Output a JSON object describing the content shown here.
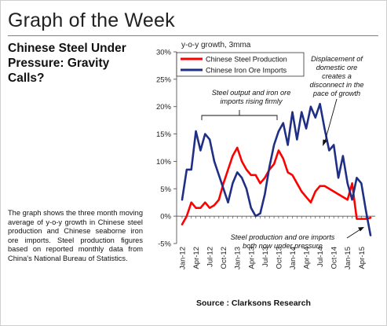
{
  "page": {
    "title": "Graph of the Week",
    "headline_lines": [
      "Chinese Steel Under",
      "Pressure: Gravity",
      "Calls?"
    ],
    "body": "The graph shows the three month moving average of y-o-y growth in Chinese steel production and Chinese seaborne iron ore imports. Steel production figures based on reported monthly data from China's National Bureau of Statistics.",
    "source": "Source : Clarksons Research"
  },
  "chart_data": {
    "type": "line",
    "ylabel": "y-o-y growth, 3mma",
    "ylim": [
      -5,
      30
    ],
    "yticks": [
      -5,
      0,
      5,
      10,
      15,
      20,
      25,
      30
    ],
    "ytick_labels": [
      "-5%",
      "0%",
      "5%",
      "10%",
      "15%",
      "20%",
      "25%",
      "30%"
    ],
    "xtick_labels": [
      "Jan-12",
      "Apr-12",
      "Jul-12",
      "Oct-12",
      "Jan-13",
      "Apr-13",
      "Jul-13",
      "Oct-13",
      "Jan-14",
      "Apr-14",
      "Jul-14",
      "Oct-14",
      "Jan-15",
      "Apr-15"
    ],
    "xtick_index": [
      0,
      3,
      6,
      9,
      12,
      15,
      18,
      21,
      24,
      27,
      30,
      33,
      36,
      39
    ],
    "x_months": [
      "Jan-12",
      "Feb-12",
      "Mar-12",
      "Apr-12",
      "May-12",
      "Jun-12",
      "Jul-12",
      "Aug-12",
      "Sep-12",
      "Oct-12",
      "Nov-12",
      "Dec-12",
      "Jan-13",
      "Feb-13",
      "Mar-13",
      "Apr-13",
      "May-13",
      "Jun-13",
      "Jul-13",
      "Aug-13",
      "Sep-13",
      "Oct-13",
      "Nov-13",
      "Dec-13",
      "Jan-14",
      "Feb-14",
      "Mar-14",
      "Apr-14",
      "May-14",
      "Jun-14",
      "Jul-14",
      "Aug-14",
      "Sep-14",
      "Oct-14",
      "Nov-14",
      "Dec-14",
      "Jan-15",
      "Feb-15",
      "Mar-15",
      "Apr-15",
      "May-15",
      "Jun-15"
    ],
    "grid": false,
    "legend_position": "top-left",
    "series": [
      {
        "name": "Chinese Steel Production",
        "color": "#ff0000",
        "values": [
          -1.5,
          0,
          2.5,
          1.5,
          1.5,
          2.5,
          1.5,
          2,
          3,
          6,
          8.5,
          11,
          12.5,
          10,
          8.5,
          7.5,
          7.5,
          6,
          7,
          8.5,
          9.5,
          12,
          10.5,
          8,
          7.5,
          6,
          4.5,
          3.5,
          2.5,
          4.5,
          5.5,
          5.5,
          5,
          4.5,
          4,
          3.5,
          3,
          6,
          -0.5,
          -0.5,
          -0.5,
          -0.3
        ]
      },
      {
        "name": "Chinese Iron Ore Imports",
        "color": "#1f2f86",
        "values": [
          3,
          8.5,
          8.5,
          15.5,
          12,
          15,
          14,
          10,
          7.5,
          5,
          2.5,
          6,
          8,
          7,
          5,
          1.5,
          0,
          0.5,
          4,
          9,
          13,
          15.5,
          17,
          13,
          19,
          14,
          19,
          16,
          20,
          18,
          20.5,
          16,
          12,
          13,
          7,
          11,
          6,
          3,
          7,
          6,
          1,
          -3.5
        ]
      }
    ],
    "annotations": {
      "rising": [
        "Steel output and iron ore",
        "imports rising firmly"
      ],
      "displacement": [
        "Displacement of",
        "domestic ore",
        "creates a",
        "disconnect in the",
        "pace of growth"
      ],
      "pressure": [
        "Steel production and ore imports",
        "both now under pressure"
      ]
    }
  }
}
